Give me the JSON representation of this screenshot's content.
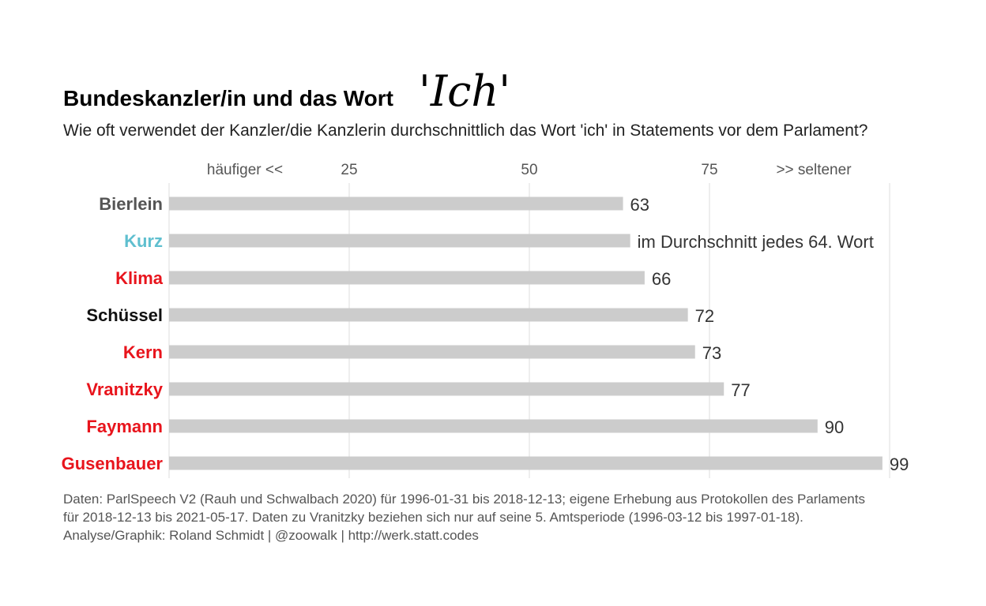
{
  "chart_data": {
    "type": "bar",
    "orientation": "horizontal",
    "title": "Bundeskanzler/in und das Wort",
    "title_word": "'Ich'",
    "subtitle": "Wie oft verwendet der Kanzler/die Kanzlerin durchschnittlich das Wort 'ich' in Statements vor dem Parlament?",
    "categories": [
      "Bierlein",
      "Kurz",
      "Klima",
      "Schüssel",
      "Kern",
      "Vranitzky",
      "Faymann",
      "Gusenbauer"
    ],
    "values": [
      63,
      64,
      66,
      72,
      73,
      77,
      90,
      99
    ],
    "value_labels": [
      "63",
      "im Durchschnitt jedes 64. Wort",
      "66",
      "72",
      "73",
      "77",
      "90",
      "99"
    ],
    "category_colors": [
      "#555555",
      "#5fbfcf",
      "#e8141c",
      "#111111",
      "#e8141c",
      "#e8141c",
      "#e8141c",
      "#e8141c"
    ],
    "bar_color": "#cccccc",
    "grid_color": "#dddddd",
    "xlim": [
      0,
      100
    ],
    "x_ticks": [
      25,
      50,
      75
    ],
    "x_tick_labels": [
      "25",
      "50",
      "75"
    ],
    "x_left_note": "häufiger <<",
    "x_right_note": ">> seltener",
    "grid": true,
    "caption_lines": [
      "Daten: ParlSpeech V2 (Rauh und Schwalbach 2020) für 1996-01-31 bis 2018-12-13; eigene Erhebung aus Protokollen des Parlaments",
      "für 2018-12-13 bis 2021-05-17. Daten zu Vranitzky beziehen sich nur auf seine 5. Amtsperiode (1996-03-12 bis 1997-01-18).",
      "Analyse/Graphik: Roland Schmidt | @zoowalk | http://werk.statt.codes"
    ]
  }
}
